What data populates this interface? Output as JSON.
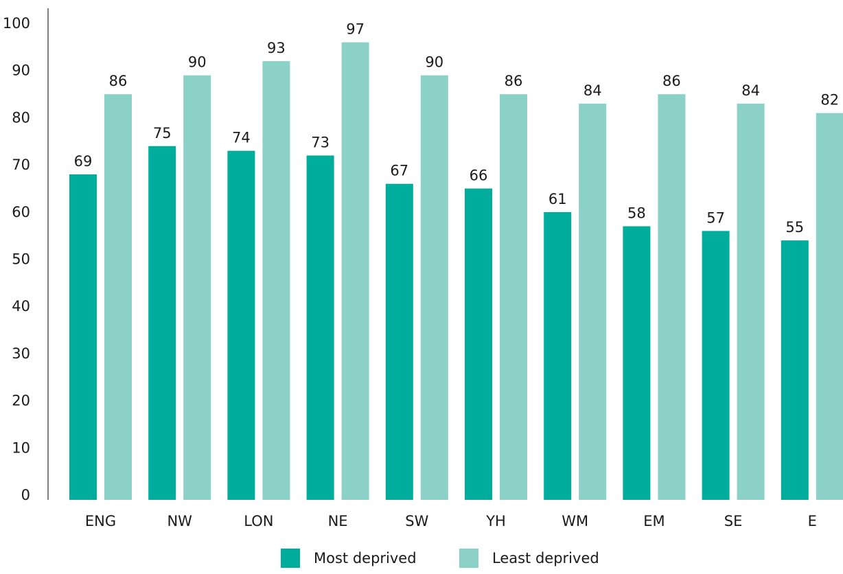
{
  "chart_data": {
    "type": "bar",
    "categories": [
      "ENG",
      "NW",
      "LON",
      "NE",
      "SW",
      "YH",
      "WM",
      "EM",
      "SE",
      "E"
    ],
    "series": [
      {
        "name": "Most deprived",
        "color": "#00ac9b",
        "values": [
          69,
          75,
          74,
          73,
          67,
          66,
          61,
          58,
          57,
          55
        ]
      },
      {
        "name": "Least deprived",
        "color": "#8bd1c8",
        "values": [
          86,
          90,
          93,
          97,
          90,
          86,
          84,
          86,
          84,
          82
        ]
      }
    ],
    "y_ticks": [
      "0",
      "10",
      "20",
      "30",
      "40",
      "50",
      "60",
      "70",
      "80",
      "90",
      "100"
    ],
    "ylim": [
      0,
      100
    ],
    "grid": false,
    "legend_position": "bottom",
    "axis_color": "#555555"
  }
}
